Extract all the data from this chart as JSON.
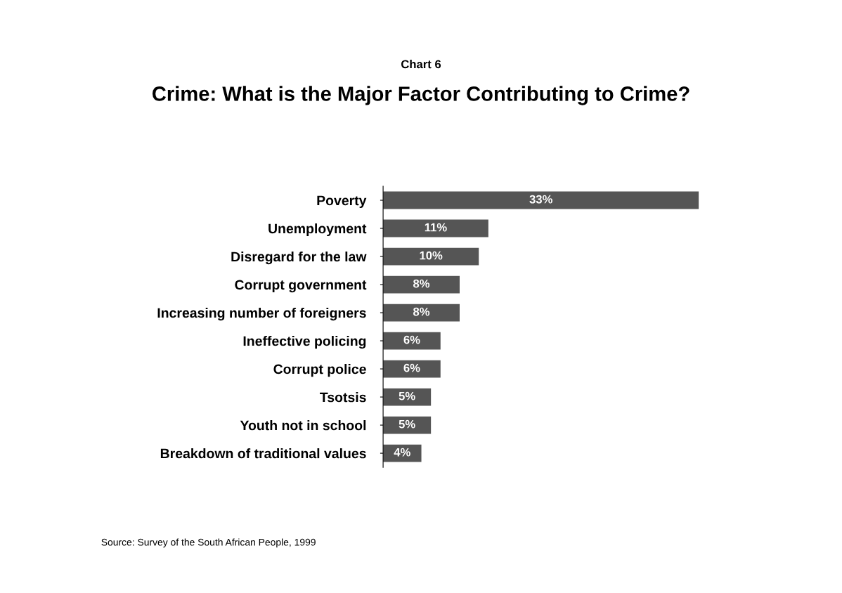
{
  "chart_data": {
    "type": "bar",
    "orientation": "horizontal",
    "subtitle": "Chart 6",
    "title": "Crime: What is the Major Factor Contributing to Crime?",
    "categories": [
      "Poverty",
      "Unemployment",
      "Disregard for the law",
      "Corrupt government",
      "Increasing number of foreigners",
      "Ineffective policing",
      "Corrupt police",
      "Tsotsis",
      "Youth not in school",
      "Breakdown of traditional values"
    ],
    "values": [
      33,
      11,
      10,
      8,
      8,
      6,
      6,
      5,
      5,
      4
    ],
    "value_labels": [
      "33%",
      "11%",
      "10%",
      "8%",
      "8%",
      "6%",
      "6%",
      "5%",
      "5%",
      "4%"
    ],
    "color": "#555555",
    "annotations": [
      "Source: Survey of the South African People, 1999"
    ]
  }
}
